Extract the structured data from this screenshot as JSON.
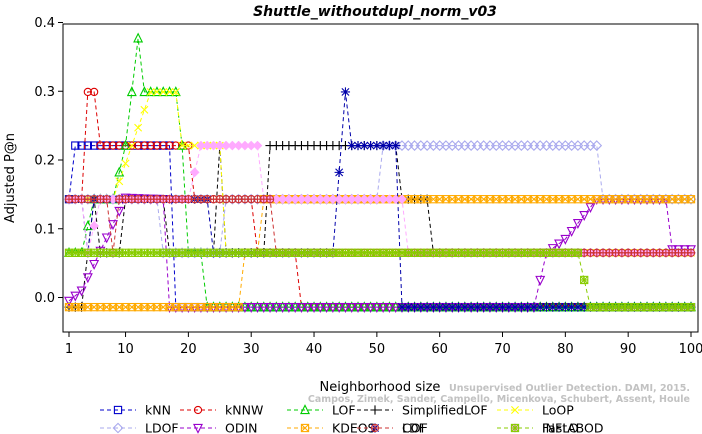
{
  "chart_data": {
    "type": "line",
    "title": "Shuttle_withoutdupl_norm_v03",
    "xlabel": "Neighborhood size",
    "ylabel": "Adjusted P@n",
    "xlim": [
      1,
      100
    ],
    "ylim": [
      -0.035,
      0.4
    ],
    "x_ticks": [
      1,
      10,
      20,
      30,
      40,
      50,
      60,
      70,
      80,
      90,
      100
    ],
    "y_ticks": [
      0.0,
      0.1,
      0.2,
      0.3,
      0.4
    ],
    "y_tick_labels": [
      "0.0",
      "0.1",
      "0.2",
      "0.3",
      "0.4"
    ],
    "watermark": [
      "Unsupervised Outlier Detection. DAMI, 2015.",
      "Campos, Zimek, Sander, Campello, Micenkova, Schubert, Assent, Houle"
    ],
    "legend": "bottom, 5 columns",
    "series": [
      {
        "name": "kNN",
        "color": "#0000cc",
        "marker": "square",
        "segments": [
          [
            [
              1,
              0.143
            ],
            [
              2,
              0.221
            ],
            [
              17,
              0.221
            ],
            [
              18,
              -0.014
            ],
            [
              100,
              -0.014
            ]
          ]
        ]
      },
      {
        "name": "kNNW",
        "color": "#dd0000",
        "marker": "circle",
        "segments": [
          [
            [
              1,
              0.143
            ],
            [
              3,
              0.143
            ],
            [
              4,
              0.299
            ],
            [
              5,
              0.299
            ],
            [
              6,
              0.221
            ],
            [
              20,
              0.221
            ],
            [
              21,
              0.143
            ],
            [
              30,
              0.143
            ],
            [
              31,
              0.065
            ],
            [
              37,
              0.065
            ],
            [
              38,
              -0.014
            ],
            [
              100,
              -0.014
            ]
          ]
        ]
      },
      {
        "name": "LOF",
        "color": "#00cc00",
        "marker": "triangle-up",
        "segments": [
          [
            [
              1,
              0.065
            ],
            [
              3,
              0.065
            ],
            [
              5,
              0.143
            ],
            [
              8,
              0.143
            ],
            [
              10,
              0.221
            ],
            [
              11,
              0.299
            ],
            [
              12,
              0.377
            ],
            [
              13,
              0.299
            ],
            [
              18,
              0.299
            ],
            [
              19,
              0.221
            ],
            [
              20,
              0.065
            ],
            [
              22,
              0.065
            ],
            [
              23,
              -0.014
            ],
            [
              100,
              -0.014
            ]
          ]
        ]
      },
      {
        "name": "SimplifiedLOF",
        "color": "#000000",
        "marker": "plus",
        "segments": [
          [
            [
              1,
              -0.014
            ],
            [
              3,
              -0.014
            ],
            [
              4,
              0.065
            ],
            [
              5,
              0.143
            ],
            [
              6,
              0.065
            ],
            [
              9,
              0.065
            ],
            [
              10,
              0.143
            ],
            [
              16,
              0.143
            ],
            [
              17,
              0.065
            ],
            [
              24,
              0.065
            ],
            [
              25,
              0.221
            ],
            [
              26,
              0.065
            ],
            [
              32,
              0.065
            ],
            [
              33,
              0.221
            ],
            [
              53,
              0.221
            ],
            [
              54,
              0.143
            ],
            [
              58,
              0.143
            ],
            [
              59,
              0.065
            ],
            [
              100,
              0.065
            ]
          ]
        ]
      },
      {
        "name": "LoOP",
        "color": "#ffff00",
        "marker": "x",
        "segments": [
          [
            [
              1,
              0.143
            ],
            [
              8,
              0.143
            ],
            [
              14,
              0.299
            ],
            [
              18,
              0.299
            ],
            [
              19,
              0.221
            ],
            [
              25,
              0.221
            ],
            [
              26,
              0.065
            ],
            [
              100,
              0.065
            ]
          ]
        ]
      },
      {
        "name": "LDOF",
        "color": "#aaaaee",
        "marker": "diamond",
        "segments": [
          [
            [
              1,
              0.143
            ],
            [
              15,
              0.143
            ],
            [
              16,
              0.065
            ],
            [
              25,
              0.065
            ],
            [
              26,
              0.143
            ],
            [
              50,
              0.143
            ],
            [
              51,
              0.221
            ],
            [
              85,
              0.221
            ],
            [
              86,
              0.143
            ],
            [
              100,
              0.143
            ]
          ]
        ]
      },
      {
        "name": "ODIN",
        "color": "#9900cc",
        "marker": "triangle-down",
        "segments": [
          [
            [
              1,
              -0.005
            ],
            [
              3,
              0.01
            ],
            [
              10,
              0.145
            ],
            [
              16,
              0.143
            ],
            [
              17,
              -0.014
            ],
            [
              75,
              -0.014
            ],
            [
              77,
              0.065
            ],
            [
              80,
              0.085
            ],
            [
              85,
              0.143
            ],
            [
              96,
              0.143
            ],
            [
              97,
              0.07
            ],
            [
              100,
              0.07
            ]
          ]
        ]
      },
      {
        "name": "KDEOS",
        "color": "#ffaa00",
        "marker": "square-x",
        "segments": [
          [
            [
              1,
              -0.014
            ],
            [
              28,
              -0.014
            ],
            [
              29,
              0.065
            ],
            [
              31,
              0.065
            ],
            [
              32,
              0.143
            ],
            [
              100,
              0.143
            ]
          ]
        ]
      },
      {
        "name": "COF",
        "color": "#0000aa",
        "marker": "asterisk",
        "segments": [
          [
            [
              1,
              0.143
            ],
            [
              3,
              0.143
            ],
            [
              4,
              0.065
            ],
            [
              5,
              0.143
            ],
            [
              23,
              0.143
            ],
            [
              24,
              0.065
            ],
            [
              43,
              0.065
            ],
            [
              45,
              0.299
            ],
            [
              46,
              0.221
            ],
            [
              53,
              0.221
            ],
            [
              54,
              -0.014
            ],
            [
              100,
              -0.014
            ]
          ]
        ]
      },
      {
        "name": "FastABOD",
        "color": "#ffaaff",
        "marker": "diamond-filled",
        "segments": [
          [
            [
              1,
              0.143
            ],
            [
              3,
              0.143
            ],
            [
              4,
              0.065
            ],
            [
              6,
              0.143
            ],
            [
              20,
              0.143
            ],
            [
              22,
              0.221
            ],
            [
              31,
              0.221
            ],
            [
              32,
              0.143
            ],
            [
              54,
              0.143
            ],
            [
              55,
              0.065
            ],
            [
              100,
              0.065
            ]
          ]
        ]
      },
      {
        "name": "LDF",
        "color": "#cc3333",
        "marker": "circle-plus",
        "segments": [
          [
            [
              1,
              0.143
            ],
            [
              7,
              0.143
            ],
            [
              8,
              0.065
            ],
            [
              9,
              0.143
            ],
            [
              33,
              0.143
            ],
            [
              34,
              0.065
            ],
            [
              100,
              0.065
            ]
          ]
        ]
      },
      {
        "name": "INFLO",
        "color": "#88cc00",
        "marker": "square-star",
        "segments": [
          [
            [
              1,
              0.065
            ],
            [
              82,
              0.065
            ],
            [
              84,
              -0.014
            ],
            [
              100,
              -0.014
            ]
          ]
        ]
      }
    ]
  }
}
